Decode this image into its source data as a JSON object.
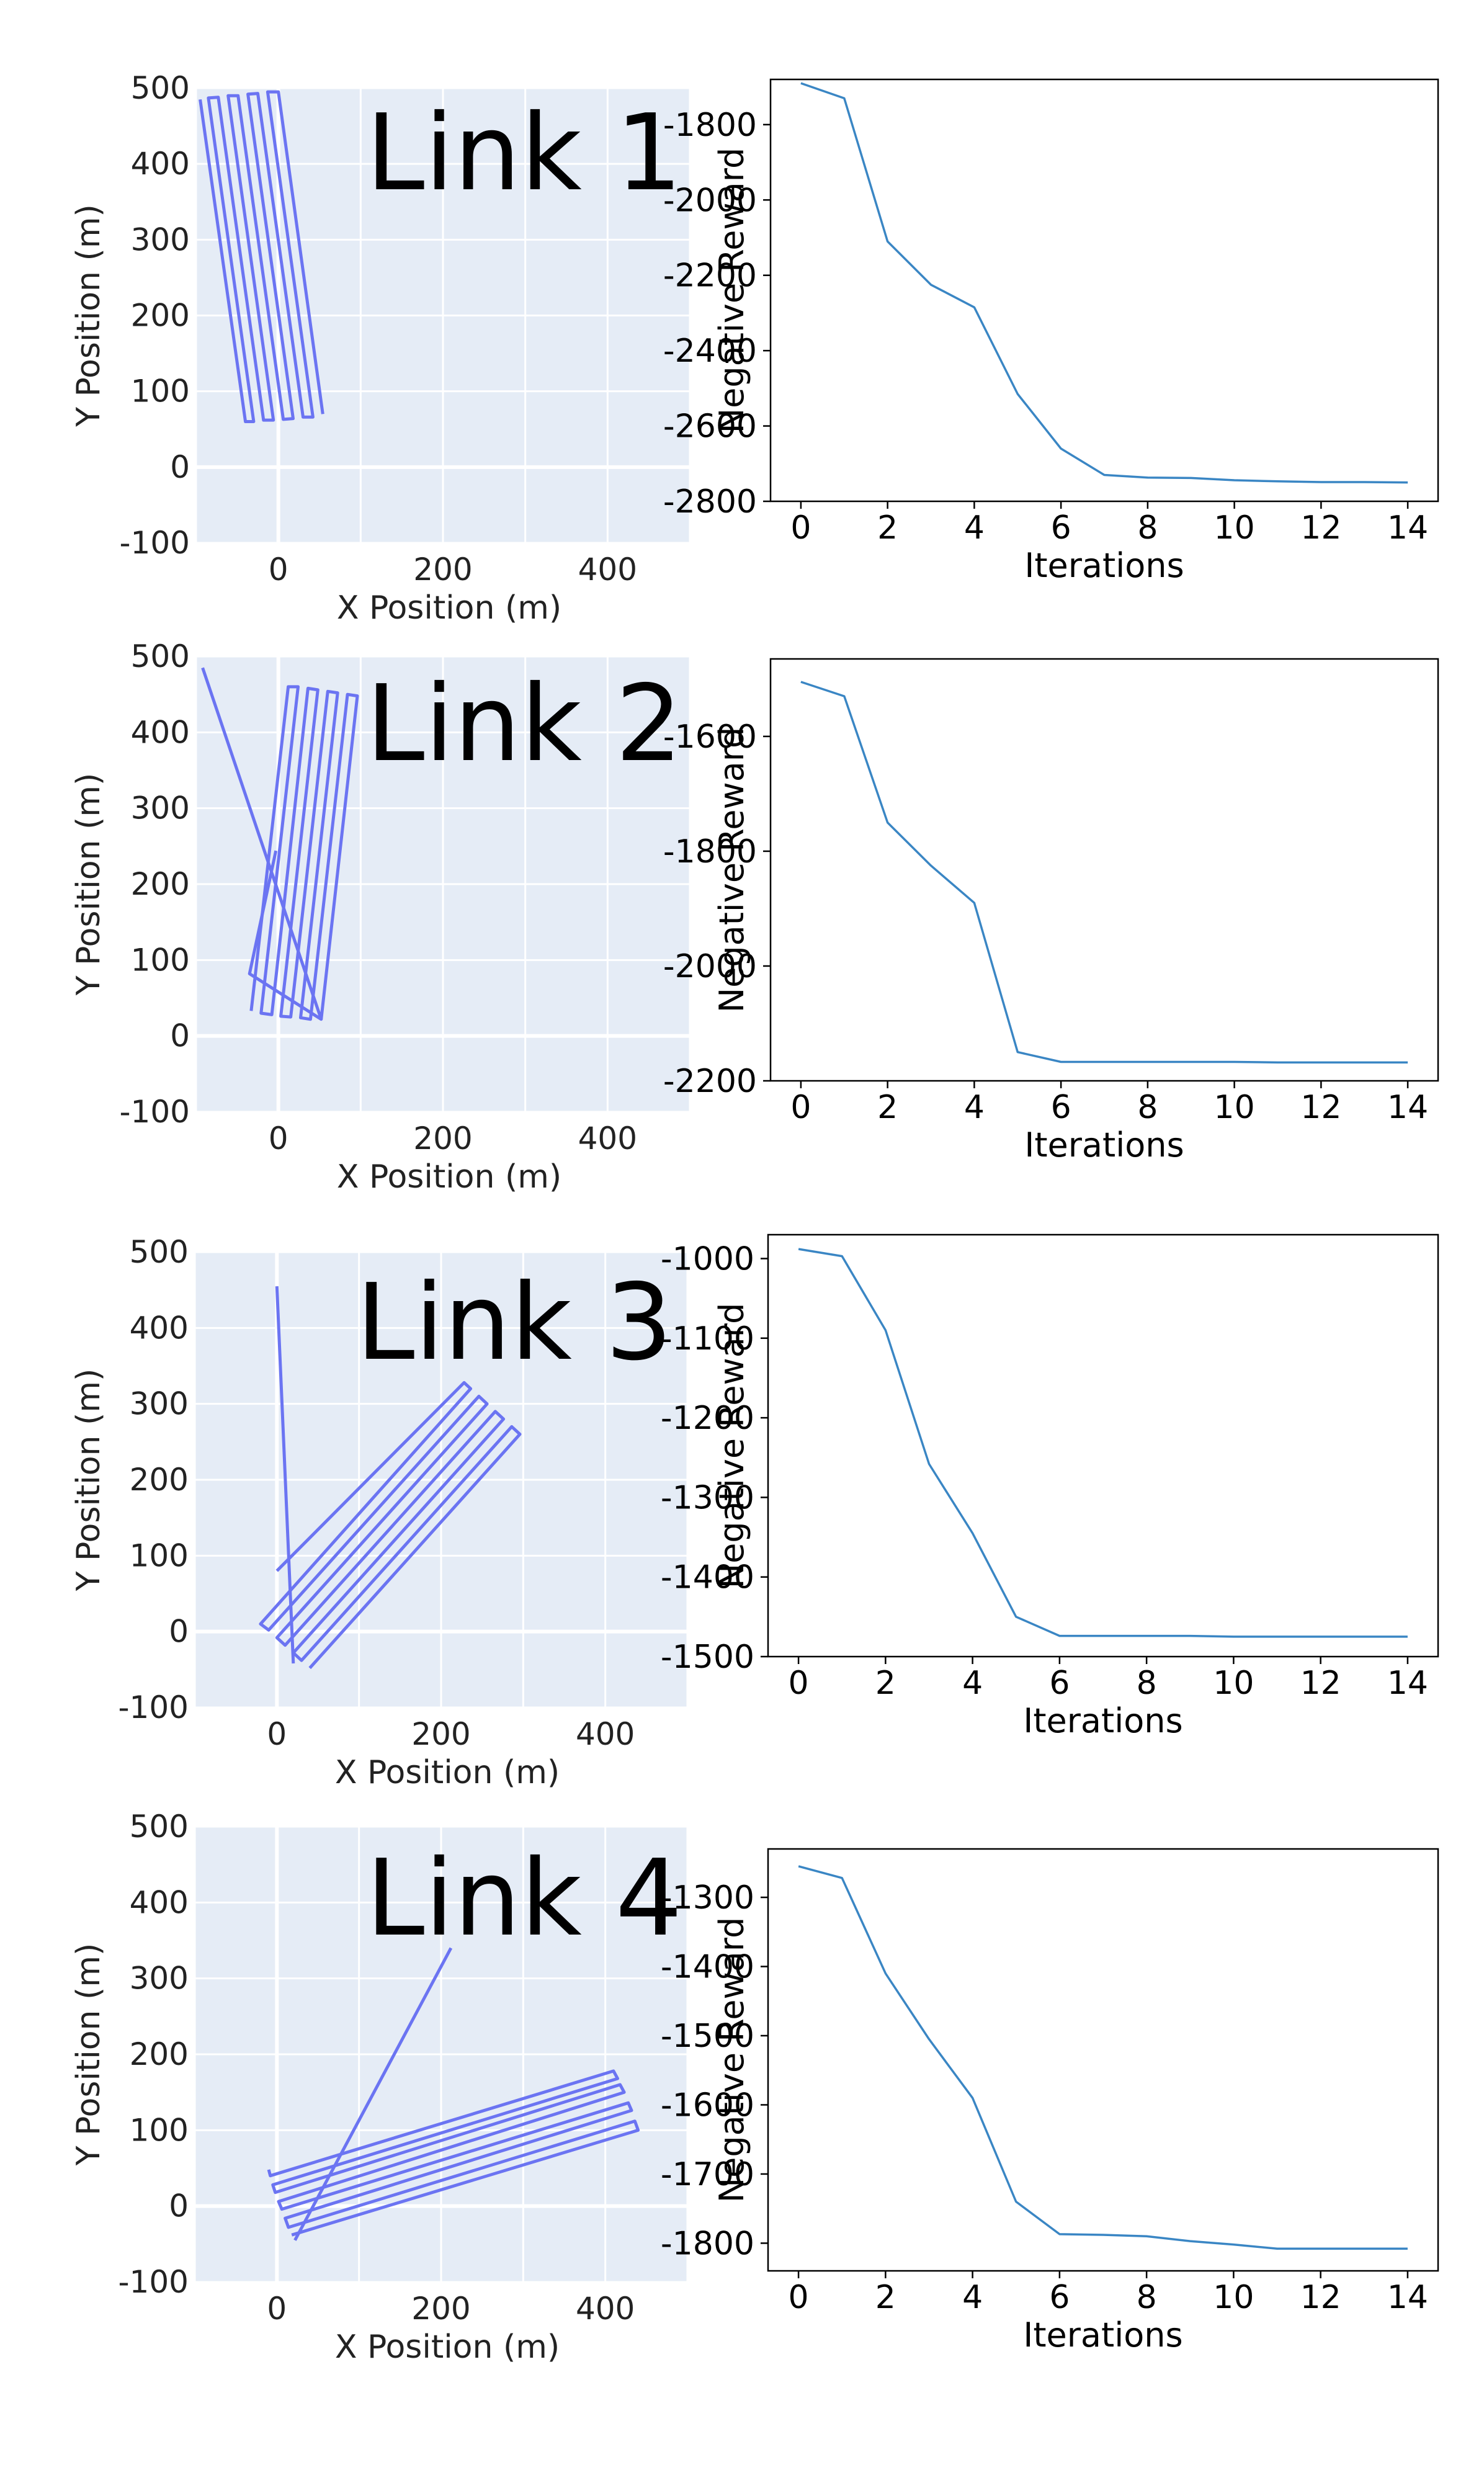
{
  "chart_data": [
    {
      "type": "line",
      "title": "Link 1",
      "xlabel": "X Position (m)",
      "ylabel": "Y Position (m)",
      "xlim": [
        -100,
        500
      ],
      "ylim": [
        -100,
        500
      ],
      "xticks": [
        0,
        200,
        400
      ],
      "yticks": [
        -100,
        0,
        100,
        200,
        300,
        400,
        500
      ],
      "grid": true,
      "background": "#e5ecf6",
      "line_color": "#6b74f2",
      "path": [
        [
          -95,
          485
        ],
        [
          -40,
          60
        ],
        [
          -30,
          60
        ],
        [
          -85,
          487
        ],
        [
          -73,
          488
        ],
        [
          -18,
          62
        ],
        [
          -6,
          62
        ],
        [
          -61,
          490
        ],
        [
          -49,
          490
        ],
        [
          6,
          63
        ],
        [
          18,
          64
        ],
        [
          -37,
          492
        ],
        [
          -25,
          493
        ],
        [
          30,
          66
        ],
        [
          42,
          66
        ],
        [
          -13,
          495
        ],
        [
          0,
          495
        ],
        [
          54,
          70
        ]
      ]
    },
    {
      "type": "line",
      "title": "",
      "xlabel": "Iterations",
      "ylabel": "Negative Reward",
      "xlim": [
        -0.7,
        14.7
      ],
      "ylim": [
        -2800,
        -1680
      ],
      "xticks": [
        0,
        2,
        4,
        6,
        8,
        10,
        12,
        14
      ],
      "yticks": [
        -2800,
        -2600,
        -2400,
        -2200,
        -2000,
        -1800
      ],
      "grid": false,
      "line_color": "#3a86c4",
      "x": [
        0,
        1,
        2,
        3,
        4,
        5,
        6,
        7,
        8,
        9,
        10,
        11,
        12,
        13,
        14
      ],
      "y": [
        -1690,
        -1730,
        -2110,
        -2225,
        -2285,
        -2515,
        -2660,
        -2730,
        -2737,
        -2738,
        -2744,
        -2747,
        -2749,
        -2749,
        -2750
      ]
    },
    {
      "type": "line",
      "title": "Link 2",
      "xlabel": "X Position (m)",
      "ylabel": "Y Position (m)",
      "xlim": [
        -100,
        500
      ],
      "ylim": [
        -100,
        500
      ],
      "xticks": [
        0,
        200,
        400
      ],
      "yticks": [
        -100,
        0,
        100,
        200,
        300,
        400,
        500
      ],
      "grid": true,
      "background": "#e5ecf6",
      "line_color": "#6b74f2",
      "path": [
        [
          -92,
          485
        ],
        [
          52,
          22
        ],
        [
          -35,
          82
        ],
        [
          -3,
          244
        ]
      ],
      "path2": [
        [
          -33,
          33
        ],
        [
          12,
          460
        ],
        [
          24,
          460
        ],
        [
          -21,
          30
        ],
        [
          -8,
          28
        ],
        [
          36,
          458
        ],
        [
          48,
          456
        ],
        [
          3,
          26
        ],
        [
          15,
          25
        ],
        [
          60,
          454
        ],
        [
          72,
          452
        ],
        [
          27,
          24
        ],
        [
          39,
          22
        ],
        [
          84,
          450
        ],
        [
          96,
          448
        ],
        [
          52,
          22
        ]
      ]
    },
    {
      "type": "line",
      "title": "",
      "xlabel": "Iterations",
      "ylabel": "Negative Reward",
      "xlim": [
        -0.7,
        14.7
      ],
      "ylim": [
        -2200,
        -1465
      ],
      "xticks": [
        0,
        2,
        4,
        6,
        8,
        10,
        12,
        14
      ],
      "yticks": [
        -2200,
        -2000,
        -1800,
        -1600
      ],
      "grid": false,
      "line_color": "#3a86c4",
      "x": [
        0,
        1,
        2,
        3,
        4,
        5,
        6,
        7,
        8,
        9,
        10,
        11,
        12,
        13,
        14
      ],
      "y": [
        -1505,
        -1530,
        -1750,
        -1825,
        -1890,
        -2150,
        -2167,
        -2167,
        -2167,
        -2167,
        -2167,
        -2168,
        -2168,
        -2168,
        -2168
      ]
    },
    {
      "type": "line",
      "title": "Link 3",
      "xlabel": "X Position (m)",
      "ylabel": "Y Position (m)",
      "xlim": [
        -100,
        500
      ],
      "ylim": [
        -100,
        500
      ],
      "xticks": [
        0,
        200,
        400
      ],
      "yticks": [
        -100,
        0,
        100,
        200,
        300,
        400,
        500
      ],
      "grid": true,
      "background": "#e5ecf6",
      "line_color": "#6b74f2",
      "path": [
        [
          0,
          455
        ],
        [
          20,
          -42
        ]
      ],
      "path2": [
        [
          0,
          80
        ],
        [
          228,
          328
        ],
        [
          236,
          320
        ],
        [
          -20,
          10
        ],
        [
          -10,
          2
        ],
        [
          246,
          310
        ],
        [
          256,
          300
        ],
        [
          0,
          -8
        ],
        [
          10,
          -18
        ],
        [
          266,
          290
        ],
        [
          276,
          280
        ],
        [
          20,
          -28
        ],
        [
          30,
          -38
        ],
        [
          286,
          270
        ],
        [
          296,
          260
        ],
        [
          40,
          -48
        ]
      ]
    },
    {
      "type": "line",
      "title": "",
      "xlabel": "Iterations",
      "ylabel": "Negative Reward",
      "xlim": [
        -0.7,
        14.7
      ],
      "ylim": [
        -1500,
        -970
      ],
      "xticks": [
        0,
        2,
        4,
        6,
        8,
        10,
        12,
        14
      ],
      "yticks": [
        -1500,
        -1400,
        -1300,
        -1200,
        -1100,
        -1000
      ],
      "grid": false,
      "line_color": "#3a86c4",
      "x": [
        0,
        1,
        2,
        3,
        4,
        5,
        6,
        7,
        8,
        9,
        10,
        11,
        12,
        13,
        14
      ],
      "y": [
        -988,
        -997,
        -1090,
        -1258,
        -1345,
        -1450,
        -1474,
        -1474,
        -1474,
        -1474,
        -1475,
        -1475,
        -1475,
        -1475,
        -1475
      ]
    },
    {
      "type": "line",
      "title": "Link 4",
      "xlabel": "X Position (m)",
      "ylabel": "Y Position (m)",
      "xlim": [
        -100,
        500
      ],
      "ylim": [
        -100,
        500
      ],
      "xticks": [
        0,
        200,
        400
      ],
      "yticks": [
        -100,
        0,
        100,
        200,
        300,
        400,
        500
      ],
      "grid": true,
      "background": "#e5ecf6",
      "line_color": "#6b74f2",
      "path": [
        [
          212,
          340
        ],
        [
          22,
          -45
        ]
      ],
      "path2": [
        [
          -10,
          48
        ],
        [
          -8,
          40
        ],
        [
          410,
          178
        ],
        [
          415,
          168
        ],
        [
          -5,
          28
        ],
        [
          -2,
          18
        ],
        [
          418,
          160
        ],
        [
          423,
          150
        ],
        [
          2,
          6
        ],
        [
          6,
          -4
        ],
        [
          428,
          136
        ],
        [
          432,
          126
        ],
        [
          10,
          -16
        ],
        [
          14,
          -28
        ],
        [
          436,
          112
        ],
        [
          440,
          100
        ],
        [
          18,
          -38
        ]
      ]
    },
    {
      "type": "line",
      "title": "",
      "xlabel": "Iterations",
      "ylabel": "Negative Reward",
      "xlim": [
        -0.7,
        14.7
      ],
      "ylim": [
        -1840,
        -1230
      ],
      "xticks": [
        0,
        2,
        4,
        6,
        8,
        10,
        12,
        14
      ],
      "yticks": [
        -1800,
        -1700,
        -1600,
        -1500,
        -1400,
        -1300
      ],
      "grid": false,
      "line_color": "#3a86c4",
      "x": [
        0,
        1,
        2,
        3,
        4,
        5,
        6,
        7,
        8,
        9,
        10,
        11,
        12,
        13,
        14
      ],
      "y": [
        -1255,
        -1272,
        -1410,
        -1505,
        -1590,
        -1740,
        -1787,
        -1788,
        -1790,
        -1797,
        -1802,
        -1808,
        -1808,
        -1808,
        -1808
      ]
    }
  ]
}
